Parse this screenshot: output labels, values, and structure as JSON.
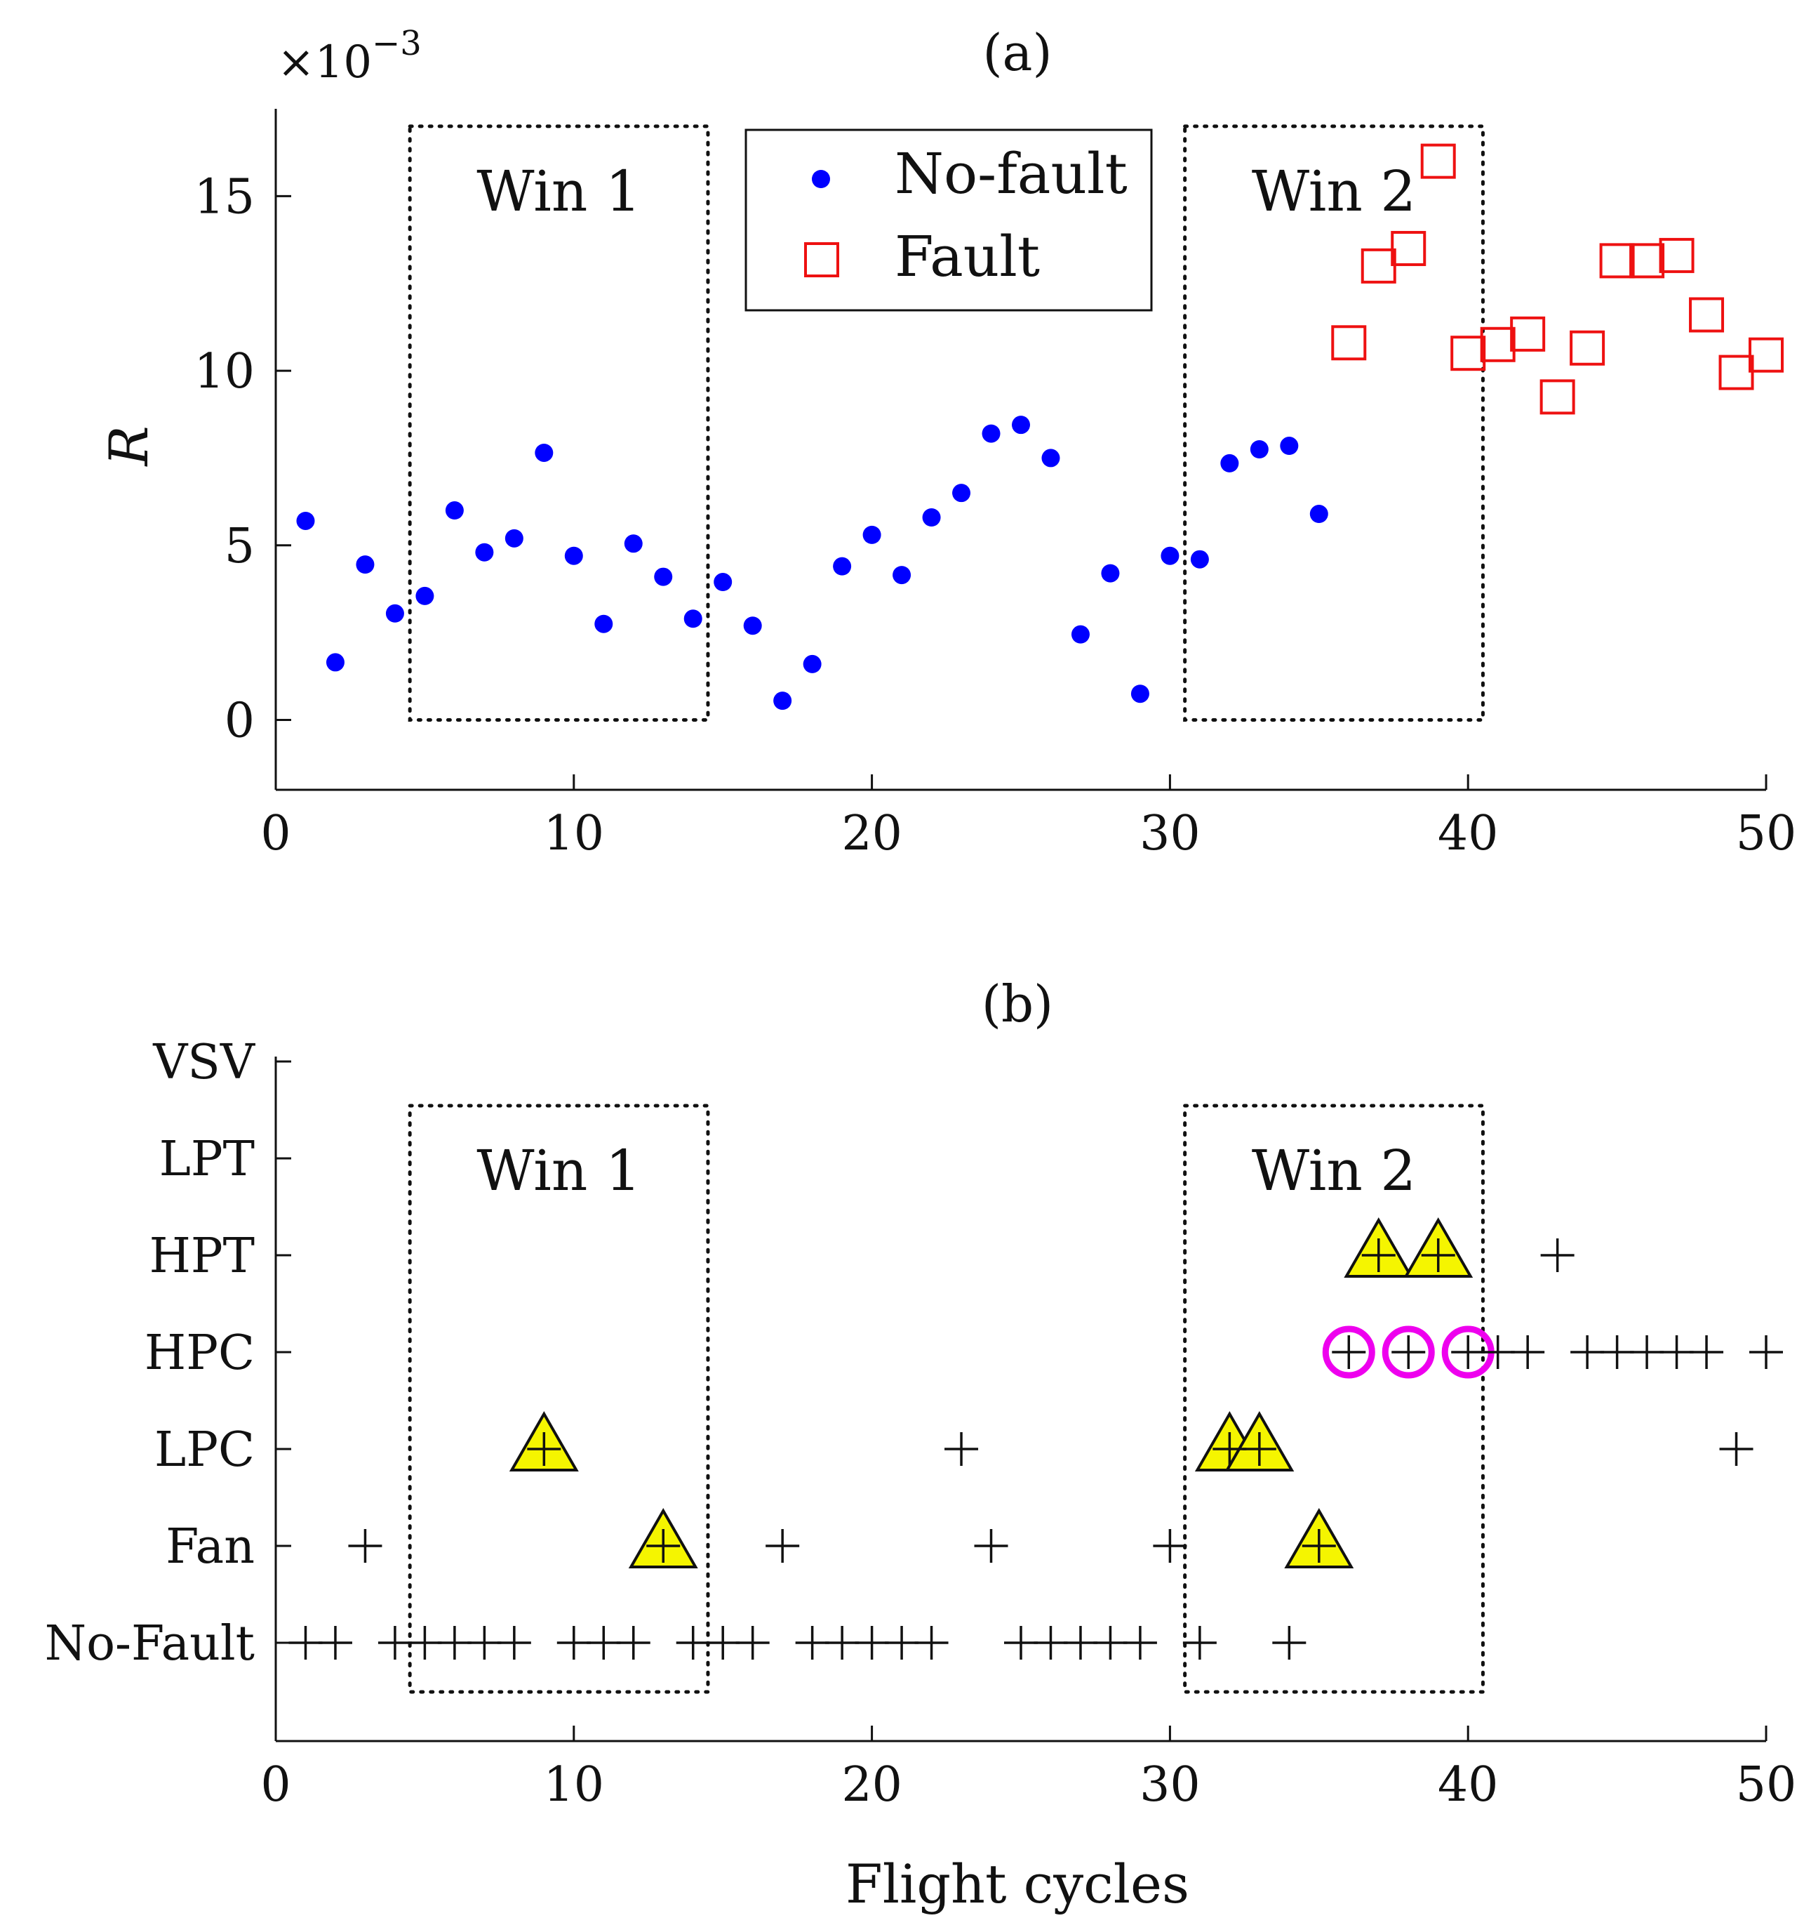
{
  "chart_data": [
    {
      "type": "scatter",
      "title": "(a)",
      "xlabel": "",
      "ylabel": "R",
      "y_exponent_label": "×10",
      "y_exponent_power": "−3",
      "xlim": [
        0,
        50
      ],
      "ylim": [
        -2,
        17.5
      ],
      "xticks": [
        0,
        10,
        20,
        30,
        40,
        50
      ],
      "yticks": [
        0,
        5,
        10,
        15
      ],
      "grid": false,
      "legend_position": "top-center",
      "windows": [
        {
          "label": "Win 1",
          "x0": 4.5,
          "x1": 14.5,
          "y0": 0,
          "y1": 17
        },
        {
          "label": "Win 2",
          "x0": 30.5,
          "x1": 40.5,
          "y0": 0,
          "y1": 17
        }
      ],
      "series": [
        {
          "name": "No-fault",
          "marker": "filled-circle",
          "color": "#0000ff",
          "x": [
            1,
            2,
            3,
            4,
            5,
            6,
            7,
            8,
            9,
            10,
            11,
            12,
            13,
            14,
            15,
            16,
            17,
            18,
            19,
            20,
            21,
            22,
            23,
            24,
            25,
            26,
            27,
            28,
            29,
            30,
            31,
            32,
            33,
            34,
            35
          ],
          "values": [
            5.7,
            1.65,
            4.45,
            3.05,
            3.55,
            6.0,
            4.8,
            5.2,
            7.65,
            4.7,
            2.75,
            5.05,
            4.1,
            2.9,
            3.95,
            2.7,
            0.55,
            1.6,
            4.4,
            5.3,
            4.15,
            5.8,
            6.5,
            8.2,
            8.45,
            7.5,
            2.45,
            4.2,
            0.75,
            4.7,
            4.6,
            7.35,
            7.75,
            7.85,
            5.9
          ]
        },
        {
          "name": "Fault",
          "marker": "open-square",
          "color": "#ee1111",
          "x": [
            36,
            37,
            38,
            39,
            40,
            41,
            42,
            43,
            44,
            45,
            46,
            47,
            48,
            49,
            50
          ],
          "values": [
            10.8,
            13.0,
            13.5,
            16.0,
            10.5,
            10.75,
            11.05,
            9.25,
            10.65,
            13.15,
            13.15,
            13.3,
            11.6,
            9.95,
            10.45
          ]
        }
      ]
    },
    {
      "type": "scatter",
      "title": "(b)",
      "xlabel": "Flight cycles",
      "ylabel": "",
      "xlim": [
        0,
        50
      ],
      "xticks": [
        0,
        10,
        20,
        30,
        40,
        50
      ],
      "categories": [
        "No-Fault",
        "Fan",
        "LPC",
        "HPC",
        "HPT",
        "LPT",
        "VSV"
      ],
      "grid": false,
      "windows": [
        {
          "label": "Win 1",
          "x0": 4.5,
          "x1": 14.5
        },
        {
          "label": "Win 2",
          "x0": 30.5,
          "x1": 40.5
        }
      ],
      "classifications": [
        {
          "x": 1,
          "category": "No-Fault"
        },
        {
          "x": 2,
          "category": "No-Fault"
        },
        {
          "x": 3,
          "category": "Fan"
        },
        {
          "x": 4,
          "category": "No-Fault"
        },
        {
          "x": 5,
          "category": "No-Fault"
        },
        {
          "x": 6,
          "category": "No-Fault"
        },
        {
          "x": 7,
          "category": "No-Fault"
        },
        {
          "x": 8,
          "category": "No-Fault"
        },
        {
          "x": 9,
          "category": "LPC"
        },
        {
          "x": 10,
          "category": "No-Fault"
        },
        {
          "x": 11,
          "category": "No-Fault"
        },
        {
          "x": 12,
          "category": "No-Fault"
        },
        {
          "x": 13,
          "category": "Fan"
        },
        {
          "x": 14,
          "category": "No-Fault"
        },
        {
          "x": 15,
          "category": "No-Fault"
        },
        {
          "x": 16,
          "category": "No-Fault"
        },
        {
          "x": 17,
          "category": "Fan"
        },
        {
          "x": 18,
          "category": "No-Fault"
        },
        {
          "x": 19,
          "category": "No-Fault"
        },
        {
          "x": 20,
          "category": "No-Fault"
        },
        {
          "x": 21,
          "category": "No-Fault"
        },
        {
          "x": 22,
          "category": "No-Fault"
        },
        {
          "x": 23,
          "category": "LPC"
        },
        {
          "x": 24,
          "category": "Fan"
        },
        {
          "x": 25,
          "category": "No-Fault"
        },
        {
          "x": 26,
          "category": "No-Fault"
        },
        {
          "x": 27,
          "category": "No-Fault"
        },
        {
          "x": 28,
          "category": "No-Fault"
        },
        {
          "x": 29,
          "category": "No-Fault"
        },
        {
          "x": 30,
          "category": "Fan"
        },
        {
          "x": 31,
          "category": "No-Fault"
        },
        {
          "x": 32,
          "category": "LPC"
        },
        {
          "x": 33,
          "category": "LPC"
        },
        {
          "x": 34,
          "category": "No-Fault"
        },
        {
          "x": 35,
          "category": "Fan"
        },
        {
          "x": 36,
          "category": "HPC"
        },
        {
          "x": 37,
          "category": "HPT"
        },
        {
          "x": 38,
          "category": "HPC"
        },
        {
          "x": 39,
          "category": "HPT"
        },
        {
          "x": 40,
          "category": "HPC"
        },
        {
          "x": 41,
          "category": "HPC"
        },
        {
          "x": 42,
          "category": "HPC"
        },
        {
          "x": 43,
          "category": "HPT"
        },
        {
          "x": 44,
          "category": "HPC"
        },
        {
          "x": 45,
          "category": "HPC"
        },
        {
          "x": 46,
          "category": "HPC"
        },
        {
          "x": 47,
          "category": "HPC"
        },
        {
          "x": 48,
          "category": "HPC"
        },
        {
          "x": 49,
          "category": "LPC"
        },
        {
          "x": 50,
          "category": "HPC"
        }
      ],
      "triangle_highlights": [
        {
          "x": 9,
          "category": "LPC"
        },
        {
          "x": 13,
          "category": "Fan"
        },
        {
          "x": 32,
          "category": "LPC"
        },
        {
          "x": 33,
          "category": "LPC"
        },
        {
          "x": 35,
          "category": "Fan"
        },
        {
          "x": 37,
          "category": "HPT"
        },
        {
          "x": 39,
          "category": "HPT"
        }
      ],
      "circle_highlights": [
        {
          "x": 36,
          "category": "HPC"
        },
        {
          "x": 38,
          "category": "HPC"
        },
        {
          "x": 40,
          "category": "HPC"
        }
      ]
    }
  ]
}
